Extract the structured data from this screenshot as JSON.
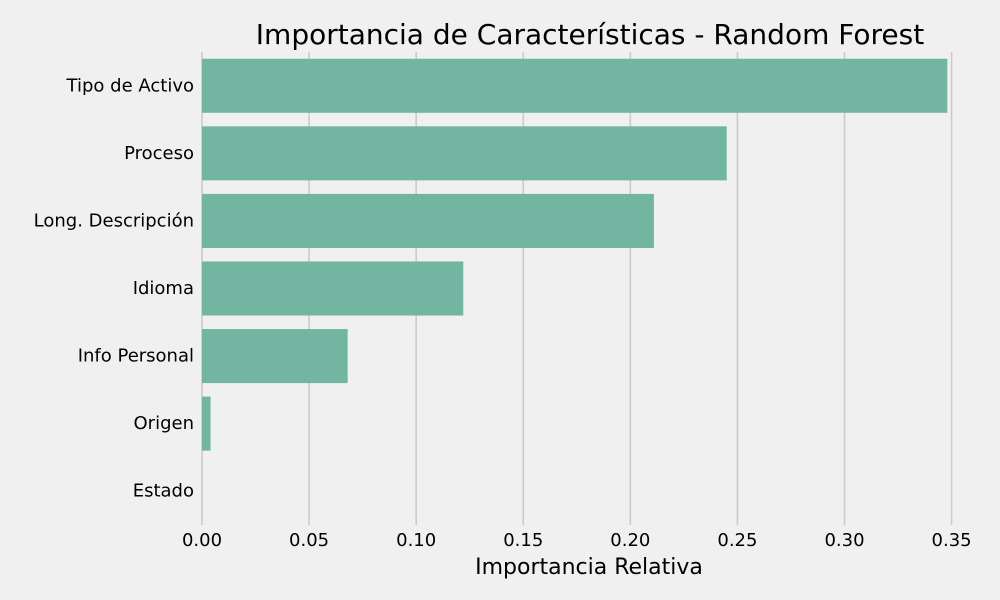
{
  "chart_data": {
    "type": "bar",
    "orientation": "horizontal",
    "title": "Importancia de Características - Random Forest",
    "xlabel": "Importancia Relativa",
    "ylabel": "",
    "categories": [
      "Tipo de Activo",
      "Proceso",
      "Long. Descripción",
      "Idioma",
      "Info Personal",
      "Origen",
      "Estado"
    ],
    "values": [
      0.348,
      0.245,
      0.211,
      0.122,
      0.068,
      0.004,
      0.0
    ],
    "xlim": [
      0.0,
      0.36
    ],
    "xticks": [
      0.0,
      0.05,
      0.1,
      0.15,
      0.2,
      0.25,
      0.3,
      0.35
    ],
    "xtick_labels": [
      "0.00",
      "0.05",
      "0.10",
      "0.15",
      "0.20",
      "0.25",
      "0.30",
      "0.35"
    ],
    "grid": "vertical",
    "colors": {
      "bar": "#72b6a1",
      "background": "#f0f0f0",
      "grid": "#cbcbcb",
      "text": "#000000"
    }
  }
}
